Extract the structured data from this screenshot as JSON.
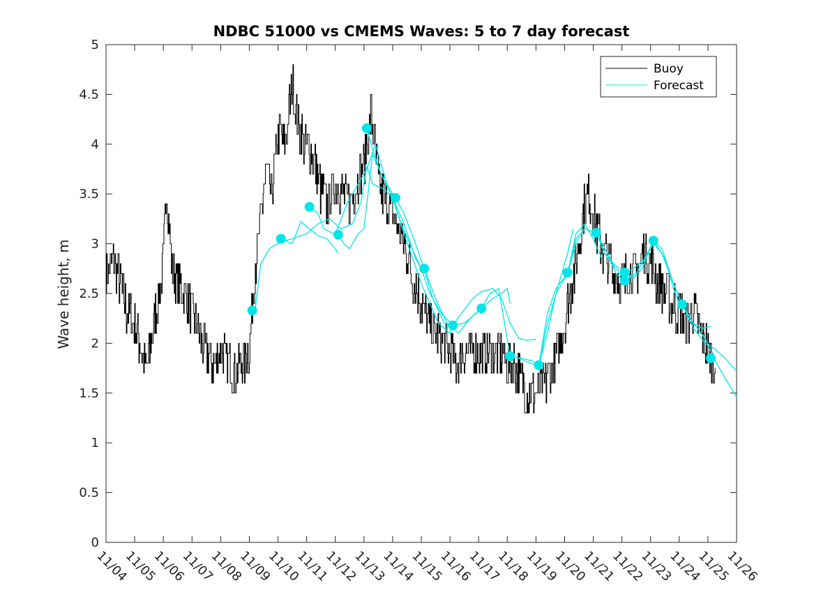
{
  "chart_data": {
    "type": "line",
    "title": "NDBC 51000 vs CMEMS Waves: 5 to 7 day forecast",
    "xlabel": "",
    "ylabel": "Wave height, m",
    "xlim": [
      0,
      22
    ],
    "ylim": [
      0,
      5
    ],
    "x_ticks": [
      0,
      1,
      2,
      3,
      4,
      5,
      6,
      7,
      8,
      9,
      10,
      11,
      12,
      13,
      14,
      15,
      16,
      17,
      18,
      19,
      20,
      21,
      22
    ],
    "x_tick_labels": [
      "11/04",
      "11/05",
      "11/06",
      "11/07",
      "11/08",
      "11/09",
      "11/10",
      "11/11",
      "11/12",
      "11/13",
      "11/14",
      "11/15",
      "11/16",
      "11/17",
      "11/18",
      "11/19",
      "11/20",
      "11/21",
      "11/22",
      "11/23",
      "11/24",
      "11/25",
      "11/26"
    ],
    "y_ticks": [
      0,
      0.5,
      1,
      1.5,
      2,
      2.5,
      3,
      3.5,
      4,
      4.5,
      5
    ],
    "y_tick_labels": [
      "0",
      "0.5",
      "1",
      "1.5",
      "2",
      "2.5",
      "3",
      "3.5",
      "4",
      "4.5",
      "5"
    ],
    "grid": false,
    "legend": {
      "position": "top-right",
      "entries": [
        "Buoy",
        "Forecast"
      ]
    },
    "colors": {
      "buoy": "#000000",
      "forecast": "#00e5e8"
    },
    "series": [
      {
        "name": "Buoy",
        "x": [
          0,
          0.25,
          0.5,
          0.75,
          1.0,
          1.25,
          1.4,
          1.6,
          1.8,
          2.0,
          2.1,
          2.3,
          2.5,
          2.75,
          3.0,
          3.25,
          3.5,
          3.75,
          4.0,
          4.25,
          4.5,
          4.75,
          5.0,
          5.1,
          5.25,
          5.4,
          5.5,
          5.6,
          5.75,
          5.9,
          6.0,
          6.25,
          6.5,
          6.75,
          7.0,
          7.25,
          7.5,
          7.75,
          8.0,
          8.25,
          8.5,
          8.75,
          9.0,
          9.25,
          9.4,
          9.5,
          9.75,
          10.0,
          10.25,
          10.5,
          10.75,
          11.0,
          11.25,
          11.5,
          11.75,
          12.0,
          12.25,
          12.5,
          12.75,
          13.0,
          13.25,
          13.5,
          13.75,
          14.0,
          14.25,
          14.5,
          14.75,
          15.0,
          15.25,
          15.5,
          15.75,
          16.0,
          16.25,
          16.5,
          16.7,
          16.85,
          17.0,
          17.25,
          17.5,
          17.75,
          18.0,
          18.25,
          18.5,
          18.75,
          19.0,
          19.25,
          19.5,
          19.75,
          20.0,
          20.25,
          20.5,
          20.75,
          21.0,
          21.25
        ],
        "values": [
          2.7,
          2.8,
          2.6,
          2.3,
          2.2,
          1.9,
          1.7,
          2.1,
          2.4,
          2.8,
          3.6,
          2.7,
          2.6,
          2.5,
          2.3,
          2.1,
          1.9,
          1.8,
          1.9,
          1.8,
          1.7,
          1.8,
          1.9,
          2.4,
          2.9,
          3.2,
          3.6,
          3.7,
          3.5,
          3.8,
          4.1,
          4.0,
          4.6,
          4.1,
          4.0,
          3.8,
          3.5,
          3.4,
          3.6,
          3.5,
          3.4,
          3.6,
          3.8,
          4.3,
          3.9,
          3.6,
          3.4,
          3.3,
          3.1,
          2.9,
          2.6,
          2.4,
          2.2,
          2.1,
          2.0,
          1.9,
          1.8,
          1.9,
          1.9,
          1.9,
          1.95,
          1.9,
          1.9,
          1.8,
          1.75,
          1.6,
          1.45,
          1.5,
          1.6,
          1.7,
          1.9,
          2.2,
          2.6,
          3.0,
          3.4,
          3.5,
          3.3,
          3.0,
          2.8,
          2.7,
          2.6,
          2.7,
          2.7,
          2.9,
          2.8,
          2.6,
          2.5,
          2.4,
          2.3,
          2.2,
          2.3,
          2.1,
          1.9,
          1.75
        ]
      },
      {
        "name": "Forecast",
        "segments": [
          {
            "x": [
              5.2,
              5.4,
              5.7,
              6.1,
              6.5,
              7.0,
              7.4,
              7.8,
              8.2,
              8.6,
              8.9,
              9.1,
              9.3,
              9.7,
              10.0,
              10.4,
              10.8,
              11.0
            ],
            "values": [
              2.33,
              2.8,
              2.95,
              3.02,
              3.05,
              3.1,
              3.2,
              3.25,
              3.15,
              3.2,
              3.42,
              3.78,
              3.6,
              3.55,
              3.46,
              3.2,
              2.85,
              2.75
            ]
          },
          {
            "x": [
              6.1,
              6.5,
              6.8,
              7.1,
              7.4,
              7.7,
              8.0,
              8.1
            ],
            "values": [
              3.05,
              3.0,
              3.22,
              3.15,
              3.08,
              3.05,
              2.95,
              2.9
            ]
          },
          {
            "x": [
              7.1,
              7.4,
              7.6,
              8.0,
              8.4,
              8.8,
              9.1,
              9.4,
              9.8,
              10.1
            ],
            "values": [
              3.37,
              3.3,
              3.15,
              3.09,
              3.4,
              3.6,
              3.75,
              4.0,
              3.6,
              3.45
            ]
          },
          {
            "x": [
              8.1,
              8.3,
              8.5,
              8.8,
              9.0,
              9.3,
              9.6,
              10.0,
              10.4,
              10.7,
              11.0,
              11.3,
              11.6,
              12.0,
              12.1
            ],
            "values": [
              3.09,
              3.0,
              2.95,
              3.1,
              3.15,
              3.9,
              3.7,
              3.46,
              3.1,
              2.85,
              2.6,
              2.4,
              2.2,
              2.1,
              2.18
            ]
          },
          {
            "x": [
              9.1,
              9.3,
              9.6,
              10.0,
              10.3,
              10.6,
              11.0,
              11.3,
              11.7,
              12.1,
              12.5,
              12.9,
              13.1
            ],
            "values": [
              4.16,
              3.95,
              3.7,
              3.46,
              3.2,
              3.0,
              2.75,
              2.5,
              2.3,
              2.18,
              2.2,
              2.3,
              2.35
            ]
          },
          {
            "x": [
              10.1,
              10.4,
              10.8,
              11.1,
              11.5,
              11.9,
              12.3,
              12.7,
              13.1,
              13.5,
              13.8,
              14.0,
              14.1
            ],
            "values": [
              3.46,
              3.3,
              3.0,
              2.75,
              2.45,
              2.2,
              2.1,
              2.25,
              2.35,
              2.45,
              2.5,
              2.55,
              2.4
            ]
          },
          {
            "x": [
              11.1,
              11.4,
              11.8,
              12.1,
              12.4,
              12.8,
              13.1,
              13.5,
              13.8,
              14.1,
              14.4,
              14.7,
              15.0
            ],
            "values": [
              2.75,
              2.45,
              2.2,
              2.18,
              2.3,
              2.45,
              2.52,
              2.55,
              2.45,
              2.2,
              2.05,
              2.03,
              2.04
            ]
          },
          {
            "x": [
              13.1,
              13.4,
              13.7,
              14.1,
              14.5,
              14.9,
              15.1,
              15.4,
              15.8,
              16.1,
              16.3
            ],
            "values": [
              2.35,
              2.5,
              2.55,
              1.87,
              1.85,
              1.82,
              1.78,
              2.2,
              2.6,
              2.9,
              3.15
            ]
          },
          {
            "x": [
              14.1,
              14.4,
              14.8,
              15.1,
              15.4,
              15.7,
              16.1,
              16.4,
              16.7,
              17.0,
              17.3
            ],
            "values": [
              1.87,
              1.85,
              1.8,
              1.78,
              2.1,
              2.5,
              2.7,
              3.1,
              3.2,
              3.05,
              2.85
            ]
          },
          {
            "x": [
              15.1,
              15.4,
              15.7,
              16.1,
              16.4,
              16.7,
              17.1,
              17.5,
              17.8,
              18.1,
              18.4
            ],
            "values": [
              1.78,
              2.3,
              2.55,
              2.7,
              3.0,
              3.15,
              3.11,
              2.9,
              2.7,
              2.62,
              2.7
            ]
          },
          {
            "x": [
              16.1,
              16.4,
              16.7,
              17.1,
              17.4,
              17.7,
              18.1,
              18.4,
              18.7,
              19.1,
              19.5,
              19.8,
              20.0
            ],
            "values": [
              2.7,
              3.05,
              3.15,
              3.11,
              2.95,
              2.8,
              2.71,
              2.65,
              2.75,
              3.03,
              2.85,
              2.55,
              2.4
            ]
          },
          {
            "x": [
              17.1,
              17.4,
              17.8,
              18.1,
              18.5,
              18.8,
              19.1,
              19.4,
              19.8,
              20.1,
              20.5,
              20.8,
              21.1
            ],
            "values": [
              3.11,
              2.9,
              2.75,
              2.63,
              2.7,
              2.85,
              3.0,
              2.9,
              2.6,
              2.39,
              2.2,
              2.15,
              2.17
            ]
          },
          {
            "x": [
              18.1,
              18.4,
              18.8,
              19.1,
              19.4,
              19.8,
              20.1,
              20.5,
              20.9,
              21.2,
              21.6,
              22.0
            ],
            "values": [
              2.71,
              2.75,
              2.85,
              3.03,
              2.95,
              2.6,
              2.39,
              2.2,
              2.05,
              1.85,
              1.65,
              1.46
            ]
          },
          {
            "x": [
              19.1,
              19.4,
              19.8,
              20.1,
              20.5,
              20.9,
              21.2,
              21.6,
              22.0
            ],
            "values": [
              3.03,
              2.9,
              2.6,
              2.39,
              2.15,
              2.0,
              1.95,
              1.85,
              1.72
            ]
          }
        ],
        "markers": {
          "x": [
            5.1,
            6.1,
            7.1,
            8.1,
            9.1,
            10.1,
            11.1,
            12.1,
            13.1,
            14.1,
            15.1,
            16.1,
            17.1,
            18.1,
            18.1,
            19.1,
            20.1,
            21.1
          ],
          "values": [
            2.33,
            3.05,
            3.37,
            3.09,
            4.16,
            3.46,
            2.75,
            2.18,
            2.35,
            1.87,
            1.78,
            2.71,
            3.11,
            2.71,
            2.63,
            3.03,
            2.39,
            1.85
          ]
        }
      }
    ]
  }
}
